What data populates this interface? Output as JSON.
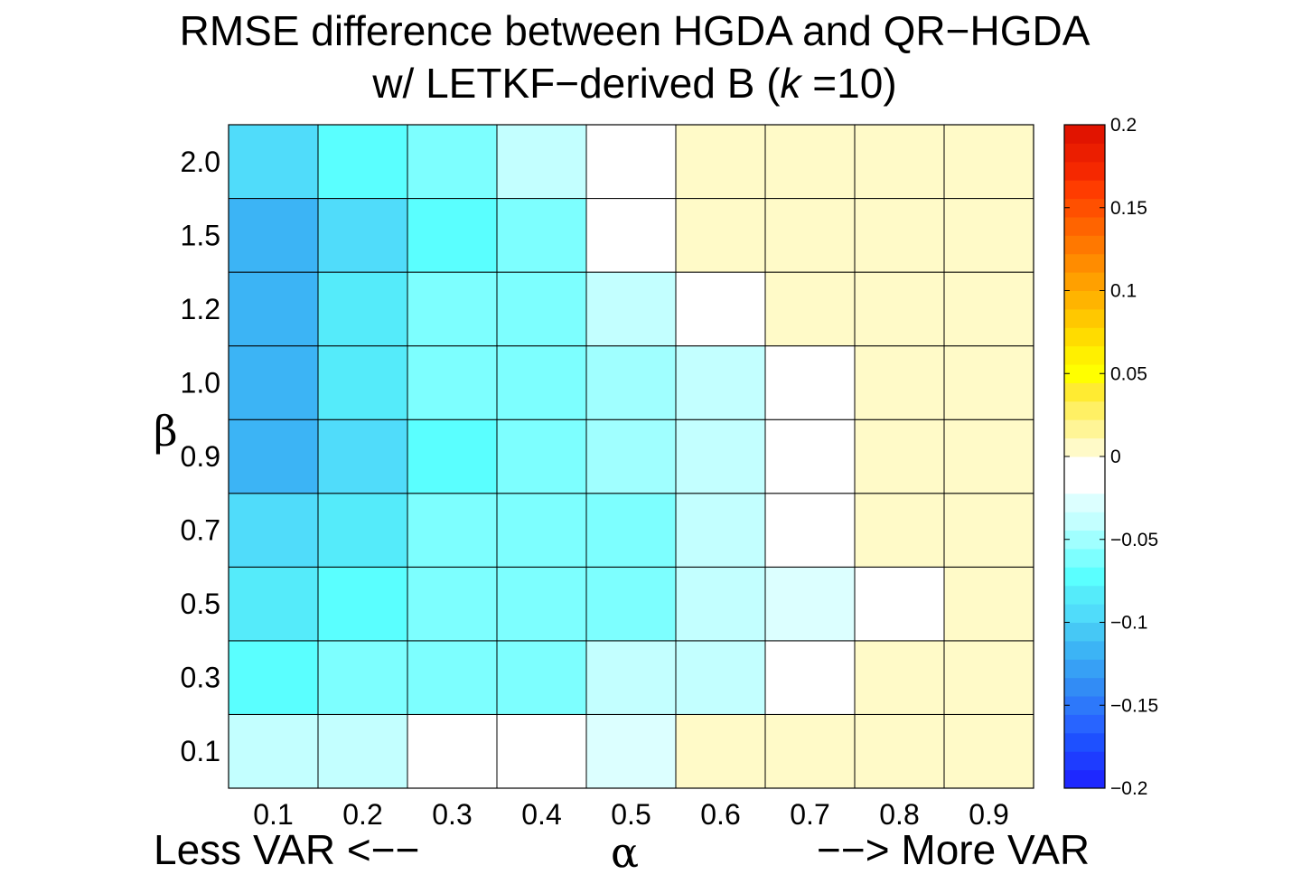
{
  "chart_data": {
    "type": "heatmap",
    "title_line1": "RMSE difference between HGDA and QR−HGDA",
    "title_line2_prefix": "w/ LETKF−derived B (",
    "title_line2_k": "k",
    "title_line2_suffix": " =10)",
    "xlabel": "α",
    "ylabel": "β",
    "x_left_annotation": "Less VAR <−−",
    "x_right_annotation": "−−> More VAR",
    "x_categories": [
      "0.1",
      "0.2",
      "0.3",
      "0.4",
      "0.5",
      "0.6",
      "0.7",
      "0.8",
      "0.9"
    ],
    "y_categories": [
      "0.1",
      "0.3",
      "0.5",
      "0.7",
      "0.9",
      "1.0",
      "1.2",
      "1.5",
      "2.0"
    ],
    "values": [
      [
        -0.04,
        -0.035,
        -0.015,
        -0.015,
        -0.025,
        0,
        0,
        0,
        0
      ],
      [
        -0.07,
        -0.06,
        -0.06,
        -0.06,
        -0.04,
        -0.035,
        -0.02,
        0,
        0
      ],
      [
        -0.08,
        -0.07,
        -0.065,
        -0.065,
        -0.06,
        -0.04,
        -0.025,
        -0.015,
        0
      ],
      [
        -0.1,
        -0.08,
        -0.065,
        -0.06,
        -0.06,
        -0.04,
        -0.02,
        0,
        0
      ],
      [
        -0.12,
        -0.095,
        -0.075,
        -0.065,
        -0.055,
        -0.04,
        -0.02,
        0,
        0
      ],
      [
        -0.12,
        -0.085,
        -0.065,
        -0.065,
        -0.055,
        -0.04,
        -0.02,
        0,
        0
      ],
      [
        -0.12,
        -0.085,
        -0.065,
        -0.06,
        -0.04,
        -0.02,
        0,
        0,
        0
      ],
      [
        -0.12,
        -0.09,
        -0.07,
        -0.06,
        -0.015,
        0,
        0,
        0,
        0
      ],
      [
        -0.095,
        -0.07,
        -0.06,
        -0.04,
        -0.015,
        0,
        0,
        0,
        0
      ]
    ],
    "colorbar": {
      "min": -0.2,
      "max": 0.2,
      "ticks": [
        -0.2,
        -0.15,
        -0.1,
        -0.05,
        0,
        0.05,
        0.1,
        0.15,
        0.2
      ],
      "tick_labels": [
        "−0.2",
        "−0.15",
        "−0.1",
        "−0.05",
        "0",
        "0.05",
        "0.1",
        "0.15",
        "0.2"
      ],
      "colors_low_to_high": [
        "#1e28ff",
        "#1e3cff",
        "#1e50ff",
        "#2864ff",
        "#2d78fa",
        "#328cf5",
        "#37a0f5",
        "#3cb4f5",
        "#46c8f5",
        "#50dcfa",
        "#55ebfa",
        "#5affff",
        "#7dffff",
        "#a0ffff",
        "#c3ffff",
        "#dcffff",
        "#ffffff",
        "#ffffff",
        "#fffac8",
        "#fff596",
        "#fff064",
        "#ffeb32",
        "#ffff00",
        "#fff000",
        "#ffdc00",
        "#ffc800",
        "#ffb400",
        "#ffa000",
        "#ff8c00",
        "#ff7800",
        "#ff6400",
        "#ff5000",
        "#ff3c00",
        "#f52800",
        "#eb1e00",
        "#e11400"
      ]
    }
  }
}
